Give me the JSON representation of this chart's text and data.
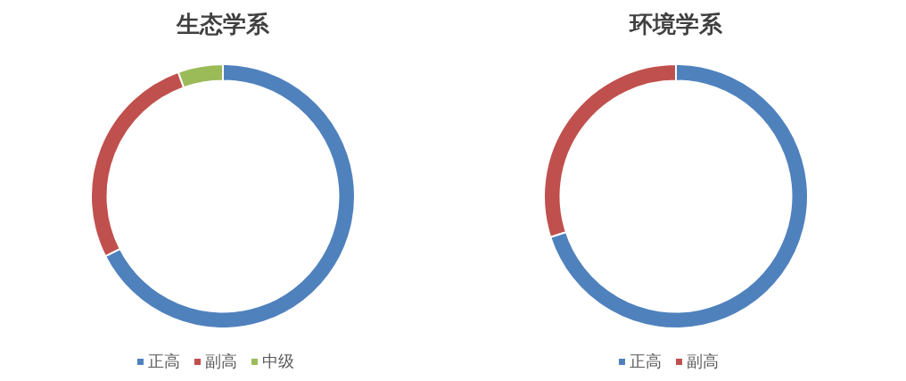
{
  "chart_data": [
    {
      "type": "donut",
      "title": "生态学系",
      "categories": [
        "正高",
        "副高",
        "中级"
      ],
      "values": [
        67.5,
        27,
        5.5
      ],
      "colors": [
        "#4f81bd",
        "#c0504d",
        "#9bbb59"
      ],
      "legend": "bottom"
    },
    {
      "type": "donut",
      "title": "环境学系",
      "categories": [
        "正高",
        "副高"
      ],
      "values": [
        70,
        30
      ],
      "colors": [
        "#4f81bd",
        "#c0504d"
      ],
      "legend": "bottom"
    }
  ]
}
